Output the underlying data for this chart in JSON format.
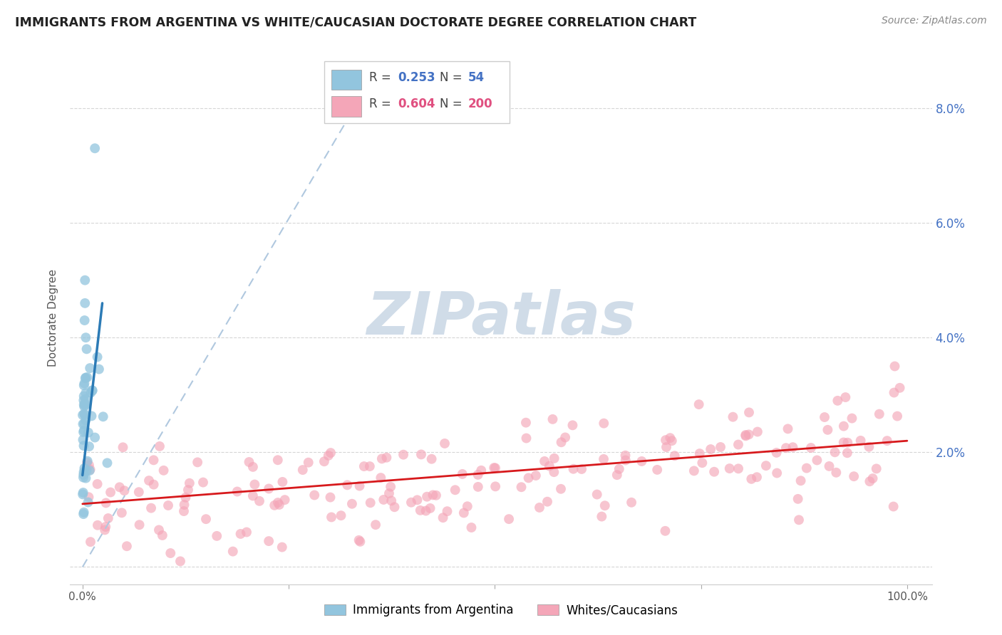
{
  "title": "IMMIGRANTS FROM ARGENTINA VS WHITE/CAUCASIAN DOCTORATE DEGREE CORRELATION CHART",
  "source": "Source: ZipAtlas.com",
  "ylabel": "Doctorate Degree",
  "legend_r_blue": "0.253",
  "legend_n_blue": "54",
  "legend_r_pink": "0.604",
  "legend_n_pink": "200",
  "blue_color": "#92c5de",
  "blue_edge_color": "#6baed6",
  "pink_color": "#f4a6b8",
  "pink_edge_color": "#de7aa0",
  "blue_line_color": "#2c7bb6",
  "pink_line_color": "#d7191c",
  "dashed_line_color": "#b0c8df",
  "watermark_color": "#d0dce8",
  "background_color": "#ffffff",
  "grid_color": "#cccccc",
  "right_axis_color": "#4472c4",
  "title_color": "#222222",
  "source_color": "#888888",
  "ylabel_color": "#555555"
}
